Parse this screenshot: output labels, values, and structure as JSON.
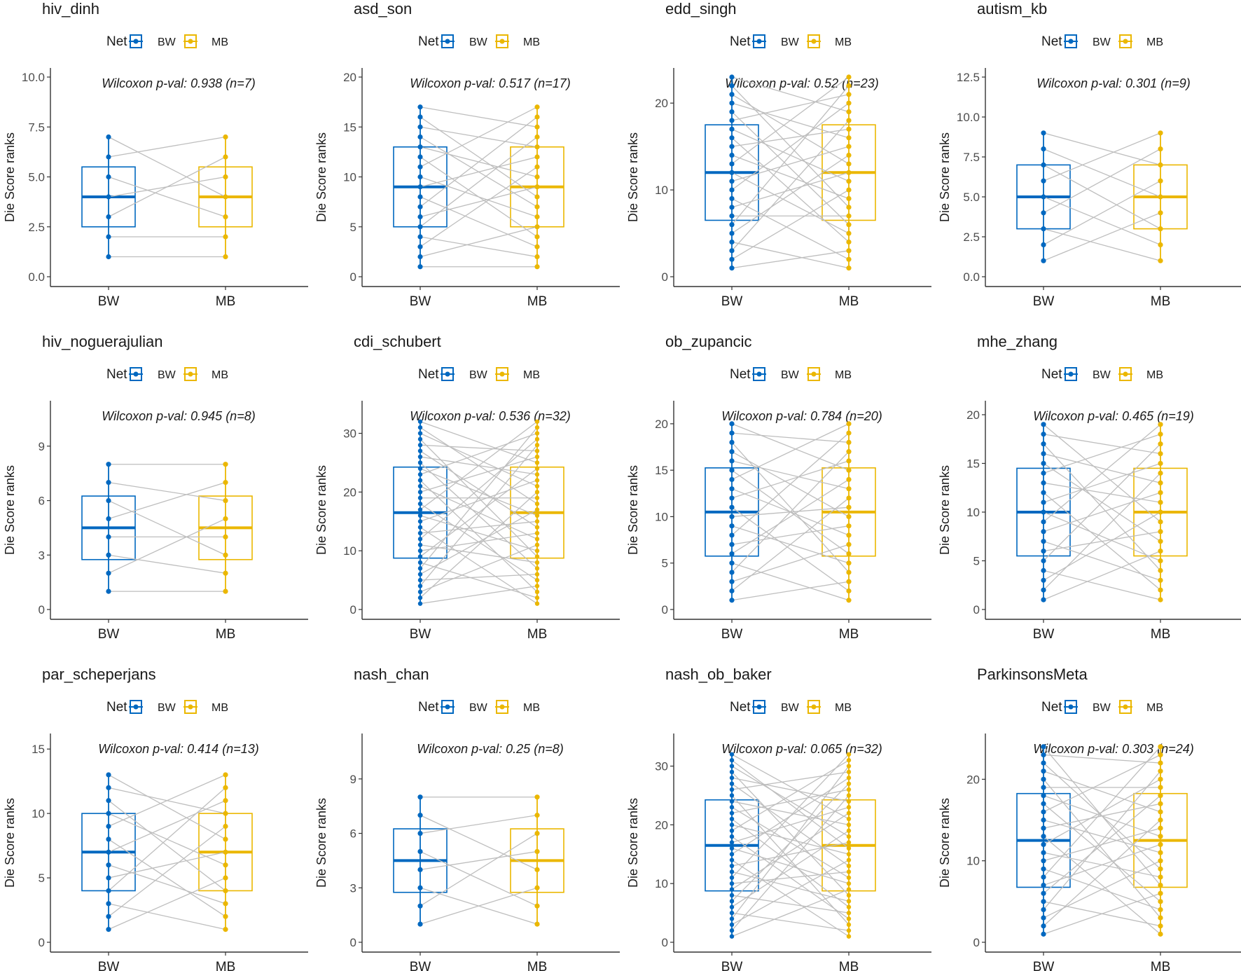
{
  "figure": {
    "title": ""
  },
  "colors": {
    "BW": "#0068C0",
    "MB": "#EBB700",
    "pair_line": "#BEBEBE",
    "axis": "#333333",
    "text": "#1a1a1a"
  },
  "legend": {
    "title": "Net",
    "entries": [
      "BW",
      "MB"
    ]
  },
  "ylabel": "Die Score ranks",
  "test_label": "Wilcoxon p-val:",
  "chart_data": [
    {
      "type": "box_paired",
      "title": "hiv_dinh",
      "categories": [
        "BW",
        "MB"
      ],
      "n": 7,
      "p_value": "0.938",
      "annotation": "Wilcoxon p-val: 0.938 (n=7)",
      "ylabel": "Die Score ranks",
      "ylim": [
        0,
        10
      ],
      "yticks": [
        0,
        2.5,
        5,
        7.5,
        10
      ],
      "ytick_labels": [
        "0.0",
        "2.5",
        "5.0",
        "7.5",
        "10.0"
      ],
      "box": {
        "q1": 2.5,
        "median": 4,
        "q3": 5.5
      },
      "pairs": [
        [
          1,
          1
        ],
        [
          2,
          2
        ],
        [
          3,
          6
        ],
        [
          4,
          5
        ],
        [
          5,
          3
        ],
        [
          6,
          7
        ],
        [
          7,
          4
        ]
      ]
    },
    {
      "type": "box_paired",
      "title": "asd_son",
      "categories": [
        "BW",
        "MB"
      ],
      "n": 17,
      "p_value": "0.517",
      "annotation": "Wilcoxon p-val: 0.517 (n=17)",
      "ylabel": "Die Score ranks",
      "ylim": [
        0,
        20
      ],
      "yticks": [
        0,
        5,
        10,
        15,
        20
      ],
      "ytick_labels": [
        "0",
        "5",
        "10",
        "15",
        "20"
      ],
      "box": {
        "q1": 5,
        "median": 9,
        "q3": 13
      },
      "pairs": [
        [
          1,
          1
        ],
        [
          2,
          5
        ],
        [
          3,
          11
        ],
        [
          4,
          2
        ],
        [
          5,
          14
        ],
        [
          6,
          9
        ],
        [
          7,
          16
        ],
        [
          8,
          3
        ],
        [
          9,
          12
        ],
        [
          10,
          6
        ],
        [
          11,
          17
        ],
        [
          12,
          4
        ],
        [
          13,
          10
        ],
        [
          14,
          7
        ],
        [
          15,
          13
        ],
        [
          16,
          8
        ],
        [
          17,
          15
        ]
      ]
    },
    {
      "type": "box_paired",
      "title": "edd_singh",
      "categories": [
        "BW",
        "MB"
      ],
      "n": 23,
      "p_value": "0.52",
      "annotation": "Wilcoxon p-val: 0.52 (n=23)",
      "ylabel": "Die Score ranks",
      "ylim": [
        0,
        23
      ],
      "yticks": [
        0,
        10,
        20
      ],
      "ytick_labels": [
        "0",
        "10",
        "20"
      ],
      "box": {
        "q1": 6.5,
        "median": 12,
        "q3": 17.5
      },
      "pairs": [
        [
          1,
          3
        ],
        [
          2,
          10
        ],
        [
          3,
          18
        ],
        [
          4,
          1
        ],
        [
          5,
          14
        ],
        [
          6,
          22
        ],
        [
          7,
          7
        ],
        [
          8,
          12
        ],
        [
          9,
          2
        ],
        [
          10,
          20
        ],
        [
          11,
          15
        ],
        [
          12,
          5
        ],
        [
          13,
          23
        ],
        [
          14,
          9
        ],
        [
          15,
          17
        ],
        [
          16,
          4
        ],
        [
          17,
          11
        ],
        [
          18,
          21
        ],
        [
          19,
          6
        ],
        [
          20,
          16
        ],
        [
          21,
          13
        ],
        [
          22,
          8
        ],
        [
          23,
          19
        ]
      ]
    },
    {
      "type": "box_paired",
      "title": "autism_kb",
      "categories": [
        "BW",
        "MB"
      ],
      "n": 9,
      "p_value": "0.301",
      "annotation": "Wilcoxon p-val: 0.301 (n=9)",
      "ylabel": "Die Score ranks",
      "ylim": [
        0,
        12.5
      ],
      "yticks": [
        0,
        2.5,
        5,
        7.5,
        10,
        12.5
      ],
      "ytick_labels": [
        "0.0",
        "2.5",
        "5.0",
        "7.5",
        "10.0",
        "12.5"
      ],
      "box": {
        "q1": 3,
        "median": 5,
        "q3": 7
      },
      "pairs": [
        [
          1,
          4
        ],
        [
          2,
          6
        ],
        [
          3,
          1
        ],
        [
          4,
          8
        ],
        [
          5,
          2
        ],
        [
          6,
          9
        ],
        [
          7,
          3
        ],
        [
          8,
          5
        ],
        [
          9,
          7
        ]
      ]
    },
    {
      "type": "box_paired",
      "title": "hiv_noguerajulian",
      "categories": [
        "BW",
        "MB"
      ],
      "n": 8,
      "p_value": "0.945",
      "annotation": "Wilcoxon p-val: 0.945 (n=8)",
      "ylabel": "Die Score ranks",
      "ylim": [
        0,
        11
      ],
      "yticks": [
        0,
        3,
        6,
        9
      ],
      "ytick_labels": [
        "0",
        "3",
        "6",
        "9"
      ],
      "box": {
        "q1": 2.75,
        "median": 4.5,
        "q3": 6.25
      },
      "pairs": [
        [
          1,
          1
        ],
        [
          2,
          5
        ],
        [
          3,
          2
        ],
        [
          4,
          4
        ],
        [
          5,
          7
        ],
        [
          6,
          3
        ],
        [
          7,
          6
        ],
        [
          8,
          8
        ]
      ]
    },
    {
      "type": "box_paired",
      "title": "cdi_schubert",
      "categories": [
        "BW",
        "MB"
      ],
      "n": 32,
      "p_value": "0.536",
      "annotation": "Wilcoxon p-val: 0.536 (n=32)",
      "ylabel": "Die Score ranks",
      "ylim": [
        0,
        34
      ],
      "yticks": [
        0,
        10,
        20,
        30
      ],
      "ytick_labels": [
        "0",
        "10",
        "20",
        "30"
      ],
      "box": {
        "q1": 8.75,
        "median": 16.5,
        "q3": 24.25
      },
      "pairs": [
        [
          1,
          4
        ],
        [
          2,
          20
        ],
        [
          3,
          11
        ],
        [
          4,
          28
        ],
        [
          5,
          6
        ],
        [
          6,
          17
        ],
        [
          7,
          31
        ],
        [
          8,
          2
        ],
        [
          9,
          24
        ],
        [
          10,
          13
        ],
        [
          11,
          8
        ],
        [
          12,
          29
        ],
        [
          13,
          15
        ],
        [
          14,
          1
        ],
        [
          15,
          22
        ],
        [
          16,
          10
        ],
        [
          17,
          32
        ],
        [
          18,
          5
        ],
        [
          19,
          19
        ],
        [
          20,
          26
        ],
        [
          21,
          12
        ],
        [
          22,
          3
        ],
        [
          23,
          30
        ],
        [
          24,
          16
        ],
        [
          25,
          7
        ],
        [
          26,
          23
        ],
        [
          27,
          14
        ],
        [
          28,
          27
        ],
        [
          29,
          9
        ],
        [
          30,
          21
        ],
        [
          31,
          18
        ],
        [
          32,
          25
        ]
      ]
    },
    {
      "type": "box_paired",
      "title": "ob_zupancic",
      "categories": [
        "BW",
        "MB"
      ],
      "n": 20,
      "p_value": "0.784",
      "annotation": "Wilcoxon p-val: 0.784 (n=20)",
      "ylabel": "Die Score ranks",
      "ylim": [
        0,
        21.5
      ],
      "yticks": [
        0,
        5,
        10,
        15,
        20
      ],
      "ytick_labels": [
        "0",
        "5",
        "10",
        "15",
        "20"
      ],
      "box": {
        "q1": 5.75,
        "median": 10.5,
        "q3": 15.25
      },
      "pairs": [
        [
          1,
          3
        ],
        [
          2,
          12
        ],
        [
          3,
          7
        ],
        [
          4,
          17
        ],
        [
          5,
          1
        ],
        [
          6,
          14
        ],
        [
          7,
          9
        ],
        [
          8,
          19
        ],
        [
          9,
          5
        ],
        [
          10,
          11
        ],
        [
          11,
          2
        ],
        [
          12,
          16
        ],
        [
          13,
          8
        ],
        [
          14,
          20
        ],
        [
          15,
          6
        ],
        [
          16,
          13
        ],
        [
          17,
          10
        ],
        [
          18,
          4
        ],
        [
          19,
          18
        ],
        [
          20,
          15
        ]
      ]
    },
    {
      "type": "box_paired",
      "title": "mhe_zhang",
      "categories": [
        "BW",
        "MB"
      ],
      "n": 19,
      "p_value": "0.465",
      "annotation": "Wilcoxon p-val: 0.465 (n=19)",
      "ylabel": "Die Score ranks",
      "ylim": [
        0,
        20.5
      ],
      "yticks": [
        0,
        5,
        10,
        15,
        20
      ],
      "ytick_labels": [
        "0",
        "5",
        "10",
        "15",
        "20"
      ],
      "box": {
        "q1": 5.5,
        "median": 10,
        "q3": 14.5
      },
      "pairs": [
        [
          1,
          6
        ],
        [
          2,
          14
        ],
        [
          3,
          10
        ],
        [
          4,
          1
        ],
        [
          5,
          17
        ],
        [
          6,
          8
        ],
        [
          7,
          3
        ],
        [
          8,
          12
        ],
        [
          9,
          19
        ],
        [
          10,
          5
        ],
        [
          11,
          15
        ],
        [
          12,
          2
        ],
        [
          13,
          11
        ],
        [
          14,
          18
        ],
        [
          15,
          7
        ],
        [
          16,
          13
        ],
        [
          17,
          4
        ],
        [
          18,
          16
        ],
        [
          19,
          9
        ]
      ]
    },
    {
      "type": "box_paired",
      "title": "par_scheperjans",
      "categories": [
        "BW",
        "MB"
      ],
      "n": 13,
      "p_value": "0.414",
      "annotation": "Wilcoxon p-val: 0.414 (n=13)",
      "ylabel": "Die Score ranks",
      "ylim": [
        0,
        15.5
      ],
      "yticks": [
        0,
        5,
        10,
        15
      ],
      "ytick_labels": [
        "0",
        "5",
        "10",
        "15"
      ],
      "box": {
        "q1": 4,
        "median": 7,
        "q3": 10
      },
      "pairs": [
        [
          1,
          5
        ],
        [
          2,
          9
        ],
        [
          3,
          1
        ],
        [
          4,
          12
        ],
        [
          5,
          7
        ],
        [
          6,
          3
        ],
        [
          7,
          11
        ],
        [
          8,
          2
        ],
        [
          9,
          13
        ],
        [
          10,
          6
        ],
        [
          11,
          4
        ],
        [
          12,
          10
        ],
        [
          13,
          8
        ]
      ]
    },
    {
      "type": "box_paired",
      "title": "nash_chan",
      "categories": [
        "BW",
        "MB"
      ],
      "n": 8,
      "p_value": "0.25",
      "annotation": "Wilcoxon p-val: 0.25 (n=8)",
      "ylabel": "Die Score ranks",
      "ylim": [
        0,
        11
      ],
      "yticks": [
        0,
        3,
        6,
        9
      ],
      "ytick_labels": [
        "0",
        "3",
        "6",
        "9"
      ],
      "box": {
        "q1": 2.75,
        "median": 4.5,
        "q3": 6.25
      },
      "pairs": [
        [
          1,
          3
        ],
        [
          2,
          6
        ],
        [
          3,
          1
        ],
        [
          4,
          5
        ],
        [
          5,
          2
        ],
        [
          6,
          7
        ],
        [
          7,
          4
        ],
        [
          8,
          8
        ]
      ]
    },
    {
      "type": "box_paired",
      "title": "nash_ob_baker",
      "categories": [
        "BW",
        "MB"
      ],
      "n": 32,
      "p_value": "0.065",
      "annotation": "Wilcoxon p-val: 0.065 (n=32)",
      "ylabel": "Die Score ranks",
      "ylim": [
        0,
        34
      ],
      "yticks": [
        0,
        10,
        20,
        30
      ],
      "ytick_labels": [
        "0",
        "10",
        "20",
        "30"
      ],
      "box": {
        "q1": 8.75,
        "median": 16.5,
        "q3": 24.25
      },
      "pairs": [
        [
          1,
          9
        ],
        [
          2,
          25
        ],
        [
          3,
          14
        ],
        [
          4,
          30
        ],
        [
          5,
          2
        ],
        [
          6,
          19
        ],
        [
          7,
          27
        ],
        [
          8,
          5
        ],
        [
          9,
          22
        ],
        [
          10,
          12
        ],
        [
          11,
          32
        ],
        [
          12,
          7
        ],
        [
          13,
          17
        ],
        [
          14,
          1
        ],
        [
          15,
          28
        ],
        [
          16,
          10
        ],
        [
          17,
          23
        ],
        [
          18,
          4
        ],
        [
          19,
          31
        ],
        [
          20,
          15
        ],
        [
          21,
          6
        ],
        [
          22,
          26
        ],
        [
          23,
          11
        ],
        [
          24,
          20
        ],
        [
          25,
          3
        ],
        [
          26,
          29
        ],
        [
          27,
          13
        ],
        [
          28,
          24
        ],
        [
          29,
          8
        ],
        [
          30,
          18
        ],
        [
          31,
          16
        ],
        [
          32,
          21
        ]
      ]
    },
    {
      "type": "box_paired",
      "title": "ParkinsonsMeta",
      "categories": [
        "BW",
        "MB"
      ],
      "n": 24,
      "p_value": "0.303",
      "annotation": "Wilcoxon p-val: 0.303 (n=24)",
      "ylabel": "Die Score ranks",
      "ylim": [
        0,
        24.5
      ],
      "yticks": [
        0,
        10,
        20
      ],
      "ytick_labels": [
        "0",
        "10",
        "20"
      ],
      "box": {
        "q1": 6.75,
        "median": 12.5,
        "q3": 18.25
      },
      "pairs": [
        [
          1,
          6
        ],
        [
          2,
          15
        ],
        [
          3,
          10
        ],
        [
          4,
          21
        ],
        [
          5,
          2
        ],
        [
          6,
          18
        ],
        [
          7,
          12
        ],
        [
          8,
          24
        ],
        [
          9,
          4
        ],
        [
          10,
          14
        ],
        [
          11,
          8
        ],
        [
          12,
          20
        ],
        [
          13,
          1
        ],
        [
          14,
          17
        ],
        [
          15,
          11
        ],
        [
          16,
          23
        ],
        [
          17,
          5
        ],
        [
          18,
          13
        ],
        [
          19,
          19
        ],
        [
          20,
          3
        ],
        [
          21,
          16
        ],
        [
          22,
          9
        ],
        [
          23,
          22
        ],
        [
          24,
          7
        ]
      ]
    }
  ]
}
